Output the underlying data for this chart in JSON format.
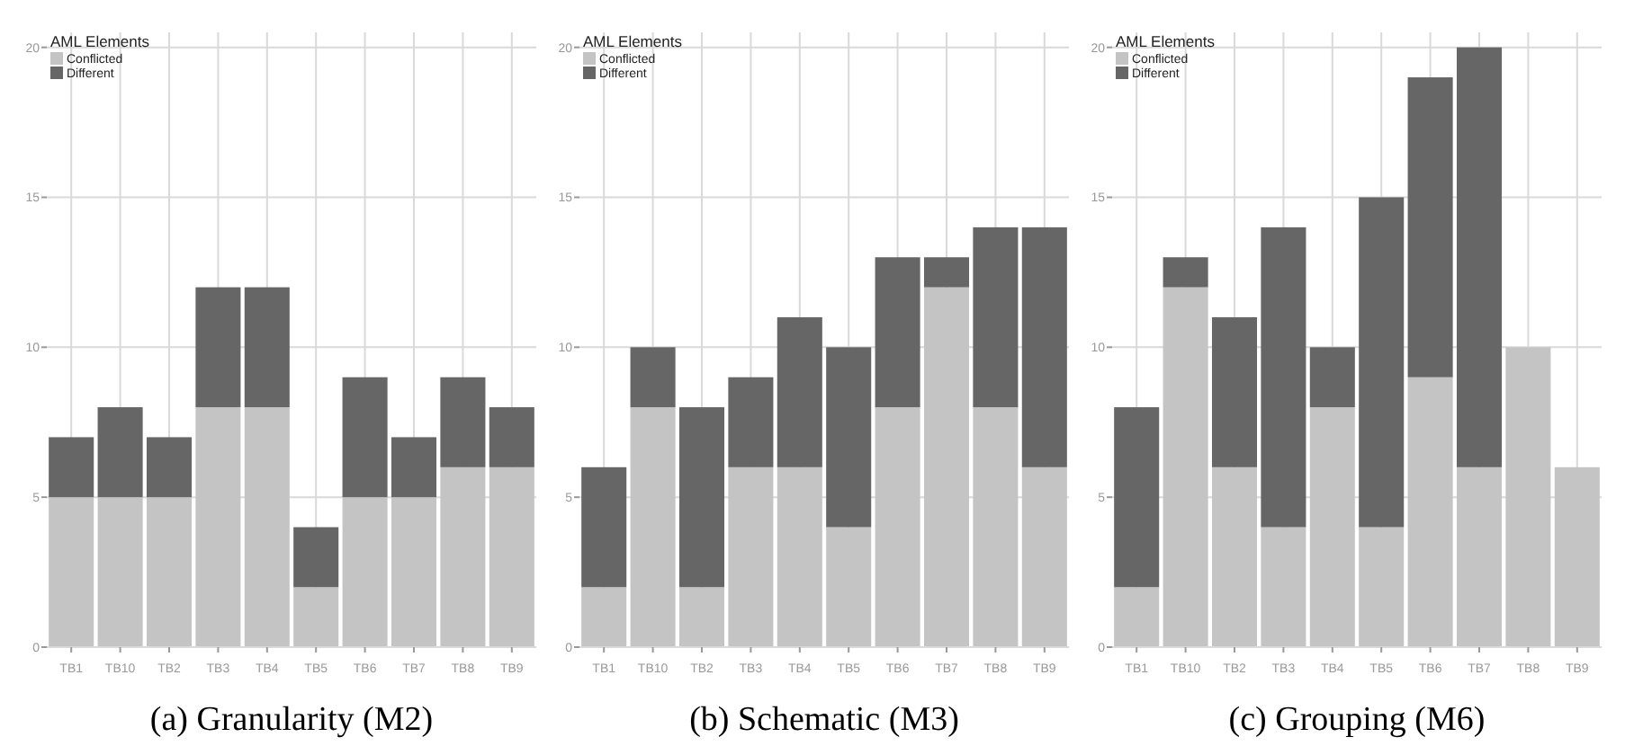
{
  "chart_data": [
    {
      "type": "bar",
      "title": "(a) Granularity (M2)",
      "legend_title": "AML Elements",
      "stacked": true,
      "grid": true,
      "legend": "top left",
      "ylim": [
        0,
        20.5
      ],
      "yticks": [
        0,
        5,
        10,
        15,
        20
      ],
      "categories": [
        "TB1",
        "TB10",
        "TB2",
        "TB3",
        "TB4",
        "TB5",
        "TB6",
        "TB7",
        "TB8",
        "TB9"
      ],
      "series": [
        {
          "name": "Conflicted",
          "color": "#c4c4c4",
          "values": [
            5,
            5,
            5,
            8,
            8,
            2,
            5,
            5,
            6,
            6
          ]
        },
        {
          "name": "Different",
          "color": "#666666",
          "values": [
            2,
            3,
            2,
            4,
            4,
            2,
            4,
            2,
            3,
            2
          ]
        }
      ]
    },
    {
      "type": "bar",
      "title": "(b) Schematic (M3)",
      "legend_title": "AML Elements",
      "stacked": true,
      "grid": true,
      "legend": "top left",
      "ylim": [
        0,
        20.5
      ],
      "yticks": [
        0,
        5,
        10,
        15,
        20
      ],
      "categories": [
        "TB1",
        "TB10",
        "TB2",
        "TB3",
        "TB4",
        "TB5",
        "TB6",
        "TB7",
        "TB8",
        "TB9"
      ],
      "series": [
        {
          "name": "Conflicted",
          "color": "#c4c4c4",
          "values": [
            2,
            8,
            2,
            6,
            6,
            4,
            8,
            12,
            8,
            6
          ]
        },
        {
          "name": "Different",
          "color": "#666666",
          "values": [
            4,
            2,
            6,
            3,
            5,
            6,
            5,
            1,
            6,
            8
          ]
        }
      ]
    },
    {
      "type": "bar",
      "title": "(c) Grouping (M6)",
      "legend_title": "AML Elements",
      "stacked": true,
      "grid": true,
      "legend": "top left",
      "ylim": [
        0,
        20.5
      ],
      "yticks": [
        0,
        5,
        10,
        15,
        20
      ],
      "categories": [
        "TB1",
        "TB10",
        "TB2",
        "TB3",
        "TB4",
        "TB5",
        "TB6",
        "TB7",
        "TB8",
        "TB9"
      ],
      "series": [
        {
          "name": "Conflicted",
          "color": "#c4c4c4",
          "values": [
            2,
            12,
            6,
            4,
            8,
            4,
            9,
            6,
            10,
            6
          ]
        },
        {
          "name": "Different",
          "color": "#666666",
          "values": [
            6,
            1,
            5,
            10,
            2,
            11,
            10,
            14,
            0,
            0
          ]
        }
      ]
    }
  ]
}
